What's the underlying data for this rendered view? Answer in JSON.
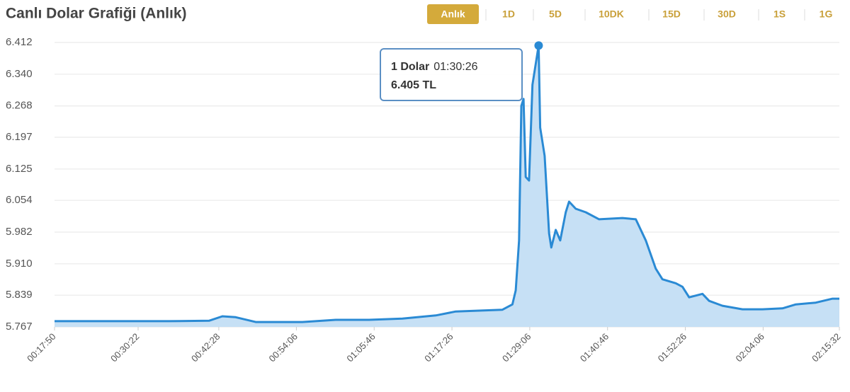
{
  "chart_data": {
    "type": "area",
    "title": "Canlı Dolar Grafiği (Anlık)",
    "ranges": [
      {
        "label": "Anlık",
        "selected": true
      },
      {
        "label": "1D",
        "selected": false
      },
      {
        "label": "5D",
        "selected": false
      },
      {
        "label": "10DK",
        "selected": false
      },
      {
        "label": "15D",
        "selected": false
      },
      {
        "label": "30D",
        "selected": false
      },
      {
        "label": "1S",
        "selected": false
      },
      {
        "label": "1G",
        "selected": false
      }
    ],
    "x": [
      "00:17:50",
      "00:25:00",
      "00:35:00",
      "00:41:00",
      "00:43:00",
      "00:45:00",
      "00:48:00",
      "00:55:00",
      "01:00:00",
      "01:05:00",
      "01:10:00",
      "01:15:00",
      "01:18:00",
      "01:25:00",
      "01:26:30",
      "01:27:00",
      "01:27:30",
      "01:27:50",
      "01:28:10",
      "01:28:30",
      "01:29:00",
      "01:29:30",
      "01:30:00",
      "01:30:26",
      "01:30:40",
      "01:31:20",
      "01:32:00",
      "01:32:20",
      "01:33:00",
      "01:33:40",
      "01:34:30",
      "01:35:00",
      "01:36:00",
      "01:37:30",
      "01:39:30",
      "01:43:00",
      "01:45:00",
      "01:46:30",
      "01:48:00",
      "01:49:00",
      "01:51:00",
      "01:52:00",
      "01:53:00",
      "01:55:00",
      "01:56:00",
      "01:58:00",
      "02:01:00",
      "02:04:00",
      "02:07:00",
      "02:09:00",
      "02:12:00",
      "02:14:30",
      "02:15:32"
    ],
    "series": [
      {
        "name": "1 Dolar",
        "color": "#2a8ad4",
        "fill": "#c6e0f5",
        "values": [
          5.78,
          5.78,
          5.78,
          5.781,
          5.791,
          5.789,
          5.778,
          5.778,
          5.783,
          5.783,
          5.786,
          5.793,
          5.802,
          5.806,
          5.818,
          5.85,
          5.963,
          6.268,
          6.284,
          6.107,
          6.099,
          6.316,
          6.364,
          6.405,
          6.219,
          6.155,
          5.979,
          5.947,
          5.987,
          5.963,
          6.027,
          6.051,
          6.035,
          6.027,
          6.011,
          6.014,
          6.011,
          5.963,
          5.899,
          5.875,
          5.866,
          5.858,
          5.834,
          5.842,
          5.826,
          5.815,
          5.807,
          5.807,
          5.809,
          5.818,
          5.822,
          5.831,
          5.831
        ]
      }
    ],
    "tooltip": {
      "name": "1 Dolar",
      "x": "01:30:26",
      "value_label": "6.405 TL",
      "point": 23
    },
    "xlim": [
      "00:17:50",
      "02:15:32"
    ],
    "xticks": [
      "00:17:50",
      "00:30:22",
      "00:42:28",
      "00:54:06",
      "01:05:46",
      "01:17:26",
      "01:29:06",
      "01:40:46",
      "01:52:26",
      "02:04:06",
      "02:15:32"
    ],
    "ylim": [
      5.767,
      6.412
    ],
    "yticks": [
      6.412,
      {
        "value": 6.34,
        "label": "6.340"
      },
      6.268,
      6.197,
      6.125,
      6.054,
      5.982,
      {
        "value": 5.91,
        "label": "5.910"
      },
      5.839,
      5.767
    ],
    "grid": true
  }
}
